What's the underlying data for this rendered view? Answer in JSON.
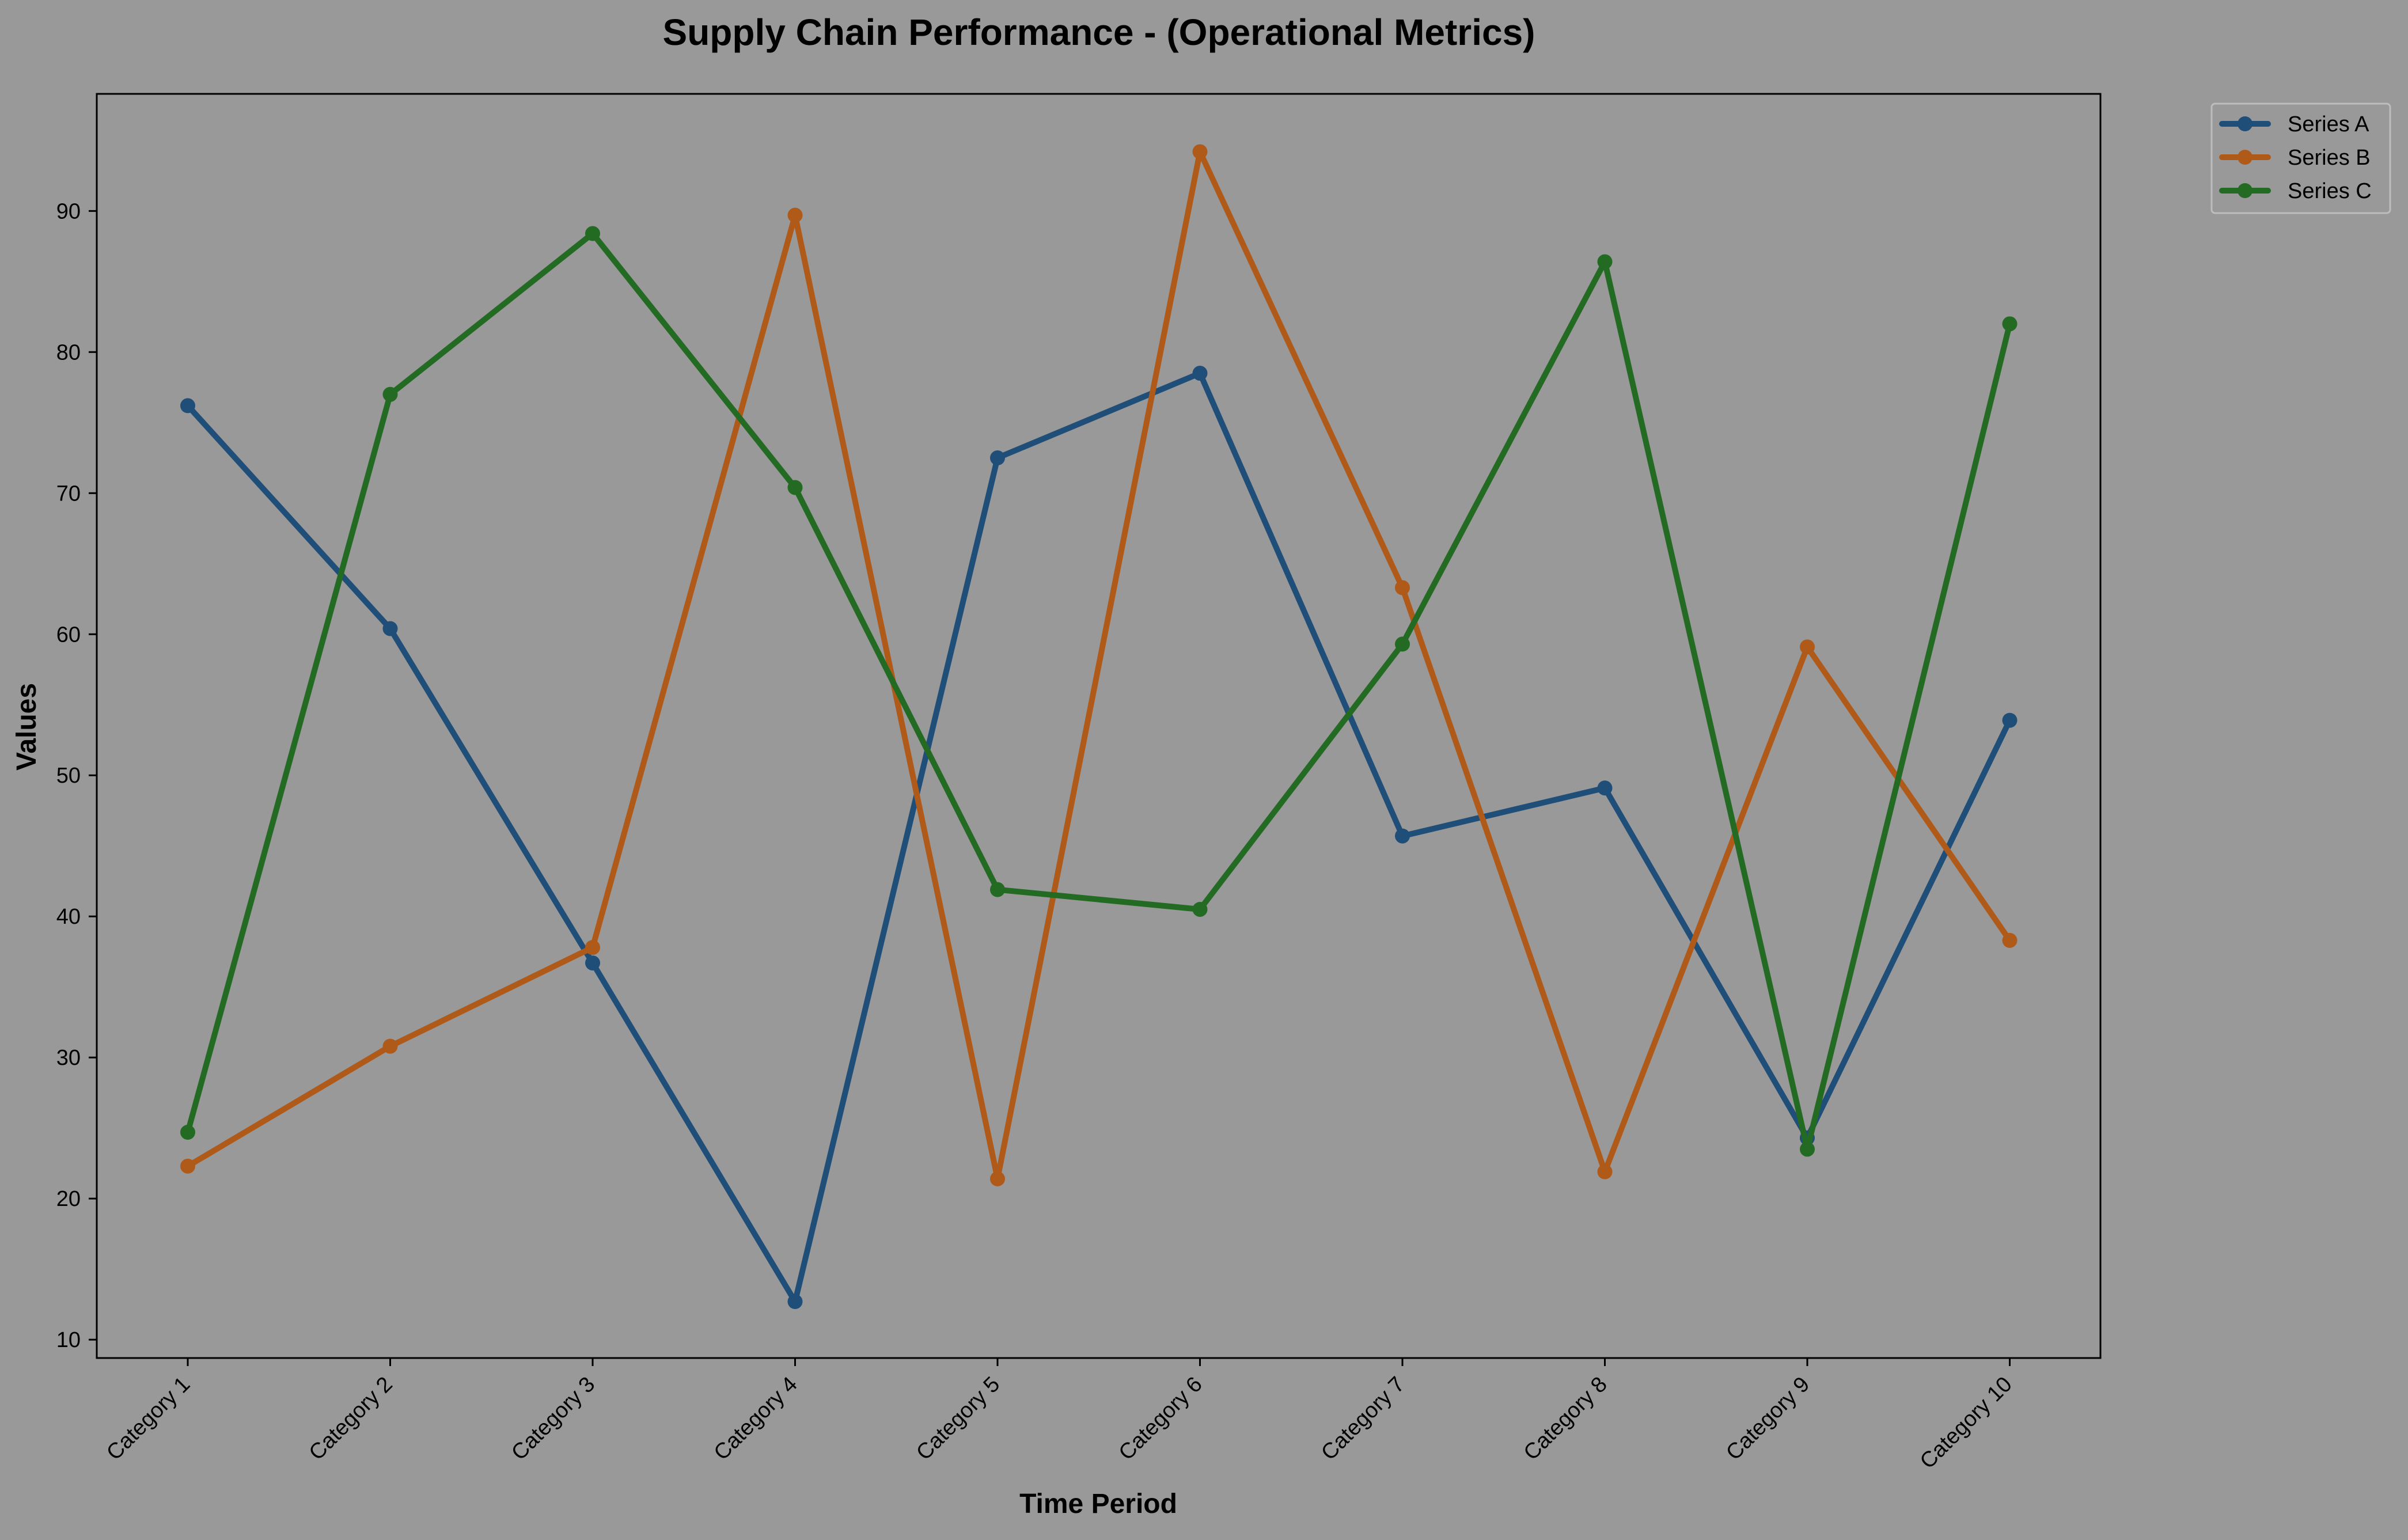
{
  "chart_data": {
    "type": "line",
    "title": "Supply Chain Performance - (Operational Metrics)",
    "xlabel": "Time Period",
    "ylabel": "Values",
    "categories": [
      "Category 1",
      "Category 2",
      "Category 3",
      "Category 4",
      "Category 5",
      "Category 6",
      "Category 7",
      "Category 8",
      "Category 9",
      "Category 10"
    ],
    "series": [
      {
        "name": "Series A",
        "color": "#1f4e79",
        "values": [
          76.2,
          60.4,
          36.7,
          12.7,
          72.5,
          78.5,
          45.7,
          49.1,
          24.3,
          53.9
        ]
      },
      {
        "name": "Series B",
        "color": "#b05a1a",
        "values": [
          22.3,
          30.8,
          37.8,
          89.7,
          21.4,
          94.2,
          63.3,
          21.9,
          59.1,
          38.3
        ]
      },
      {
        "name": "Series C",
        "color": "#236b23",
        "values": [
          24.7,
          77.0,
          88.4,
          70.4,
          41.9,
          40.5,
          59.3,
          86.4,
          23.5,
          82.0
        ]
      }
    ],
    "yticks": [
      10,
      20,
      30,
      40,
      50,
      60,
      70,
      80,
      90
    ],
    "ylim": [
      8.7,
      98.3
    ],
    "grid": false,
    "legend_position": "outside-top-right",
    "background": "#999999",
    "axes_color": "#000000"
  }
}
